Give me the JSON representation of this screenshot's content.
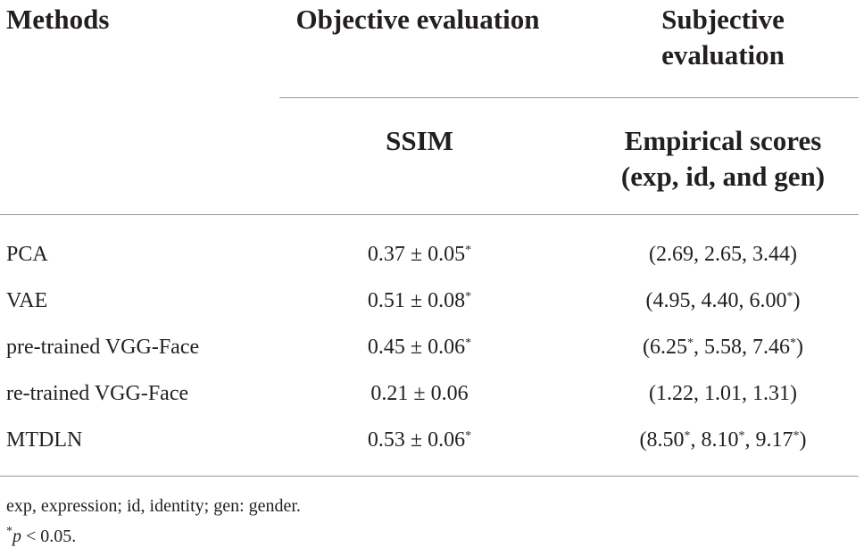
{
  "header": {
    "methods": "Methods",
    "objective": "Objective evaluation",
    "subjective_line1": "Subjective",
    "subjective_line2": "evaluation",
    "ssim": "SSIM",
    "empirical_line1": "Empirical scores",
    "empirical_line2": "(exp, id, and gen)"
  },
  "rows": [
    {
      "method": "PCA",
      "ssim": "0.37 ± 0.05*",
      "scores": "(2.69, 2.65, 3.44)"
    },
    {
      "method": "VAE",
      "ssim": "0.51 ± 0.08*",
      "scores": "(4.95, 4.40, 6.00*)"
    },
    {
      "method": "pre-trained VGG-Face",
      "ssim": "0.45 ± 0.06*",
      "scores": "(6.25*, 5.58, 7.46*)"
    },
    {
      "method": "re-trained VGG-Face",
      "ssim": "0.21 ± 0.06",
      "scores": "(1.22, 1.01, 1.31)"
    },
    {
      "method": "MTDLN",
      "ssim": "0.53 ± 0.06*",
      "scores": "(8.50*, 8.10*, 9.17*)"
    }
  ],
  "footnotes": {
    "abbrev": "exp, expression; id, identity; gen: gender.",
    "star": "*",
    "p": "p",
    "rest": " < 0.05."
  }
}
